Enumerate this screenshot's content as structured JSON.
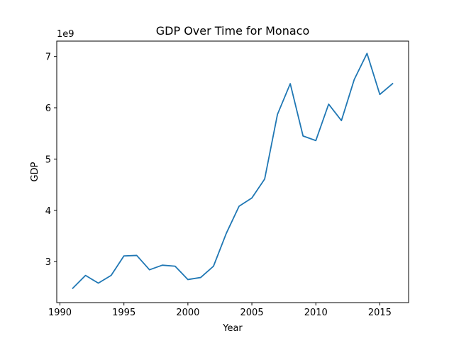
{
  "chart_data": {
    "type": "line",
    "title": "GDP Over Time for Monaco",
    "xlabel": "Year",
    "ylabel": "GDP",
    "y_scale_label": "1e9",
    "xlim": [
      1989.75,
      2017.25
    ],
    "ylim": [
      2200000000.0,
      7300000000.0
    ],
    "x_ticks": [
      {
        "value": 1990,
        "label": "1990"
      },
      {
        "value": 1995,
        "label": "1995"
      },
      {
        "value": 2000,
        "label": "2000"
      },
      {
        "value": 2005,
        "label": "2005"
      },
      {
        "value": 2010,
        "label": "2010"
      },
      {
        "value": 2015,
        "label": "2015"
      }
    ],
    "y_ticks": [
      {
        "value": 3000000000.0,
        "label": "3"
      },
      {
        "value": 4000000000.0,
        "label": "4"
      },
      {
        "value": 5000000000.0,
        "label": "5"
      },
      {
        "value": 6000000000.0,
        "label": "6"
      },
      {
        "value": 7000000000.0,
        "label": "7"
      }
    ],
    "grid": false,
    "series": [
      {
        "color": "#1f77b4",
        "x": [
          1991,
          1992,
          1993,
          1994,
          1995,
          1996,
          1997,
          1998,
          1999,
          2000,
          2001,
          2002,
          2003,
          2004,
          2005,
          2006,
          2007,
          2008,
          2009,
          2010,
          2011,
          2012,
          2013,
          2014,
          2015,
          2016
        ],
        "y": [
          2480000000.0,
          2730000000.0,
          2580000000.0,
          2730000000.0,
          3110000000.0,
          3120000000.0,
          2840000000.0,
          2930000000.0,
          2910000000.0,
          2650000000.0,
          2690000000.0,
          2910000000.0,
          3550000000.0,
          4080000000.0,
          4240000000.0,
          4610000000.0,
          5870000000.0,
          6470000000.0,
          5450000000.0,
          5360000000.0,
          6070000000.0,
          5750000000.0,
          6550000000.0,
          7060000000.0,
          6260000000.0,
          6470000000.0
        ]
      }
    ]
  }
}
